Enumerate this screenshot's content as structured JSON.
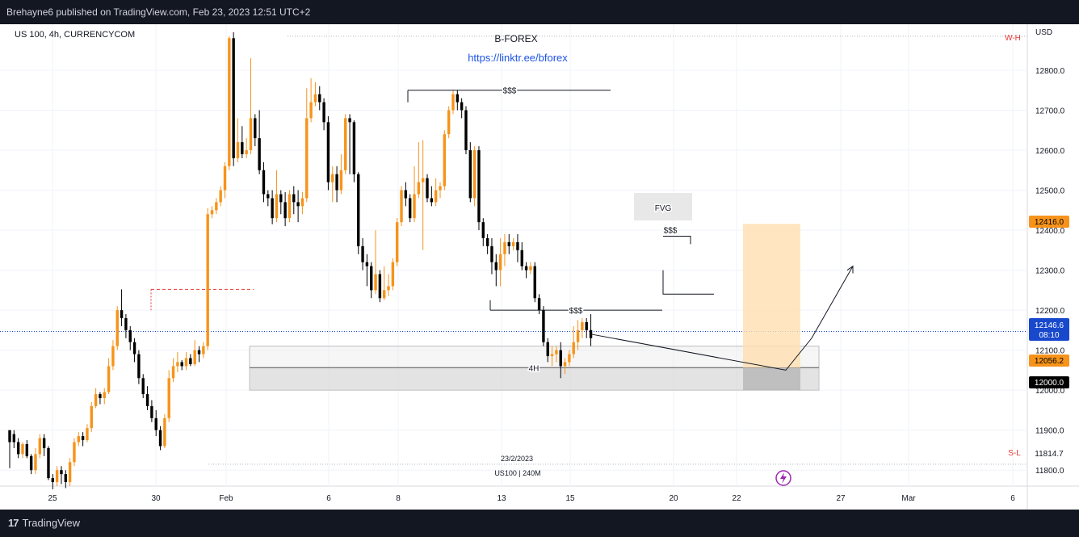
{
  "header": {
    "publisher_line": "Brehayne6 published on TradingView.com, Feb 23, 2023 12:51 UTC+2"
  },
  "footer": {
    "brand": "TradingView"
  },
  "colors": {
    "bull": "#f7931a",
    "bear": "#000000",
    "grid": "#f0f3fa",
    "accent_blue": "#1e53e5",
    "red": "#e53935"
  },
  "chart_data": {
    "type": "candlestick",
    "title": "US 100, 4h, CURRENCYCOM",
    "currency": "USD",
    "watermark_title": "B-FOREX",
    "watermark_link": "https://linktr.ee/bforex",
    "y_ticks": [
      "12800.0",
      "12700.0",
      "12600.0",
      "12500.0",
      "12400.0",
      "12300.0",
      "12200.0",
      "12100.0",
      "12000.0",
      "11900.0",
      "11800.0"
    ],
    "ylim": [
      11760,
      12915
    ],
    "x_ticks": [
      "25",
      "30",
      "Feb",
      "6",
      "8",
      "13",
      "15",
      "20",
      "22",
      "27",
      "Mar",
      "6"
    ],
    "price_labels": {
      "resistance": "12416.0",
      "last_price": "12146.6",
      "countdown": "08:10",
      "zone_mid": "12056.2",
      "level_12000": "12000.0",
      "low_line": "11814.7"
    },
    "line_labels": {
      "high": "W-H",
      "low": "S-L"
    },
    "annotations": {
      "sss_top": "$$$",
      "sss_bottom": "$$$",
      "sss_mid": "$$$",
      "fvg": "FVG",
      "zone_4h": "4H",
      "date_note": "23/2/2023",
      "symbol_note": "US100 | 240M"
    },
    "candles": [
      [
        11900,
        11870,
        11805,
        11890
      ],
      [
        11890,
        11870,
        11855,
        11900
      ],
      [
        11870,
        11840,
        11830,
        11880
      ],
      [
        11840,
        11865,
        11830,
        11870
      ],
      [
        11865,
        11835,
        11830,
        11875
      ],
      [
        11835,
        11800,
        11790,
        11840
      ],
      [
        11800,
        11840,
        11790,
        11855
      ],
      [
        11840,
        11880,
        11830,
        11890
      ],
      [
        11880,
        11855,
        11835,
        11890
      ],
      [
        11855,
        11780,
        11775,
        11860
      ],
      [
        11780,
        11770,
        11752,
        11790
      ],
      [
        11770,
        11800,
        11760,
        11810
      ],
      [
        11800,
        11790,
        11765,
        11810
      ],
      [
        11790,
        11770,
        11755,
        11800
      ],
      [
        11770,
        11820,
        11760,
        11830
      ],
      [
        11820,
        11870,
        11810,
        11880
      ],
      [
        11870,
        11885,
        11860,
        11895
      ],
      [
        11885,
        11875,
        11860,
        11895
      ],
      [
        11875,
        11905,
        11870,
        11915
      ],
      [
        11905,
        11960,
        11895,
        11970
      ],
      [
        11960,
        11990,
        11955,
        12005
      ],
      [
        11990,
        11980,
        11965,
        11995
      ],
      [
        11980,
        11995,
        11965,
        12005
      ],
      [
        11995,
        12060,
        11990,
        12080
      ],
      [
        12060,
        12110,
        12050,
        12125
      ],
      [
        12110,
        12200,
        12100,
        12210
      ],
      [
        12200,
        12180,
        12160,
        12252
      ],
      [
        12180,
        12150,
        12130,
        12190
      ],
      [
        12150,
        12120,
        12100,
        12160
      ],
      [
        12120,
        12090,
        12070,
        12130
      ],
      [
        12090,
        12030,
        12015,
        12100
      ],
      [
        12030,
        11990,
        11980,
        12040
      ],
      [
        11990,
        11960,
        11950,
        12010
      ],
      [
        11960,
        11930,
        11920,
        11975
      ],
      [
        11930,
        11900,
        11885,
        11950
      ],
      [
        11900,
        11860,
        11850,
        11910
      ],
      [
        11860,
        11930,
        11855,
        11940
      ],
      [
        11930,
        12030,
        11920,
        12050
      ],
      [
        12030,
        12060,
        12020,
        12080
      ],
      [
        12060,
        12070,
        12045,
        12095
      ],
      [
        12070,
        12060,
        12050,
        12075
      ],
      [
        12060,
        12080,
        12050,
        12095
      ],
      [
        12080,
        12065,
        12060,
        12090
      ],
      [
        12065,
        12100,
        12060,
        12125
      ],
      [
        12100,
        12090,
        12070,
        12110
      ],
      [
        12090,
        12110,
        12080,
        12120
      ],
      [
        12110,
        12440,
        12100,
        12455
      ],
      [
        12440,
        12450,
        12430,
        12460
      ],
      [
        12450,
        12470,
        12440,
        12480
      ],
      [
        12470,
        12500,
        12460,
        12510
      ],
      [
        12500,
        12560,
        12480,
        12570
      ],
      [
        12560,
        12880,
        12550,
        12885
      ],
      [
        12880,
        12580,
        12560,
        12895
      ],
      [
        12580,
        12620,
        12570,
        12680
      ],
      [
        12620,
        12590,
        12580,
        12660
      ],
      [
        12590,
        12600,
        12580,
        12630
      ],
      [
        12600,
        12680,
        12590,
        12830
      ],
      [
        12680,
        12630,
        12610,
        12690
      ],
      [
        12630,
        12550,
        12540,
        12700
      ],
      [
        12550,
        12490,
        12470,
        12570
      ],
      [
        12490,
        12480,
        12460,
        12500
      ],
      [
        12480,
        12430,
        12415,
        12500
      ],
      [
        12430,
        12490,
        12420,
        12550
      ],
      [
        12490,
        12470,
        12440,
        12500
      ],
      [
        12470,
        12430,
        12410,
        12495
      ],
      [
        12430,
        12490,
        12420,
        12500
      ],
      [
        12490,
        12470,
        12440,
        12510
      ],
      [
        12470,
        12460,
        12420,
        12500
      ],
      [
        12460,
        12480,
        12440,
        12495
      ],
      [
        12480,
        12680,
        12470,
        12755
      ],
      [
        12680,
        12720,
        12670,
        12780
      ],
      [
        12720,
        12740,
        12710,
        12770
      ],
      [
        12740,
        12720,
        12700,
        12760
      ],
      [
        12720,
        12670,
        12650,
        12730
      ],
      [
        12670,
        12520,
        12500,
        12685
      ],
      [
        12520,
        12540,
        12470,
        12560
      ],
      [
        12540,
        12500,
        12470,
        12560
      ],
      [
        12500,
        12550,
        12490,
        12590
      ],
      [
        12550,
        12680,
        12540,
        12690
      ],
      [
        12680,
        12670,
        12540,
        12690
      ],
      [
        12670,
        12540,
        12520,
        12675
      ],
      [
        12540,
        12360,
        12340,
        12545
      ],
      [
        12360,
        12320,
        12300,
        12380
      ],
      [
        12320,
        12310,
        12260,
        12340
      ],
      [
        12310,
        12250,
        12230,
        12320
      ],
      [
        12250,
        12290,
        12240,
        12400
      ],
      [
        12290,
        12230,
        12220,
        12300
      ],
      [
        12230,
        12250,
        12225,
        12310
      ],
      [
        12250,
        12260,
        12235,
        12290
      ],
      [
        12260,
        12320,
        12250,
        12330
      ],
      [
        12320,
        12420,
        12310,
        12430
      ],
      [
        12420,
        12500,
        12410,
        12510
      ],
      [
        12500,
        12480,
        12460,
        12520
      ],
      [
        12480,
        12430,
        12420,
        12490
      ],
      [
        12430,
        12490,
        12420,
        12560
      ],
      [
        12490,
        12520,
        12480,
        12620
      ],
      [
        12520,
        12530,
        12350,
        12625
      ],
      [
        12530,
        12480,
        12470,
        12540
      ],
      [
        12480,
        12470,
        12460,
        12510
      ],
      [
        12470,
        12500,
        12460,
        12530
      ],
      [
        12500,
        12510,
        12480,
        12520
      ],
      [
        12510,
        12640,
        12500,
        12650
      ],
      [
        12640,
        12700,
        12630,
        12710
      ],
      [
        12700,
        12740,
        12690,
        12750
      ],
      [
        12740,
        12720,
        12700,
        12750
      ],
      [
        12720,
        12700,
        12680,
        12730
      ],
      [
        12700,
        12600,
        12590,
        12710
      ],
      [
        12600,
        12480,
        12470,
        12620
      ],
      [
        12480,
        12600,
        12460,
        12610
      ],
      [
        12600,
        12420,
        12400,
        12610
      ],
      [
        12420,
        12380,
        12360,
        12430
      ],
      [
        12380,
        12360,
        12340,
        12390
      ],
      [
        12360,
        12320,
        12290,
        12380
      ],
      [
        12320,
        12300,
        12260,
        12340
      ],
      [
        12300,
        12340,
        12260,
        12380
      ],
      [
        12340,
        12370,
        12310,
        12390
      ],
      [
        12370,
        12360,
        12340,
        12390
      ],
      [
        12360,
        12370,
        12350,
        12380
      ],
      [
        12370,
        12350,
        12320,
        12390
      ],
      [
        12350,
        12310,
        12300,
        12370
      ],
      [
        12310,
        12300,
        12280,
        12320
      ],
      [
        12300,
        12310,
        12290,
        12320
      ],
      [
        12310,
        12230,
        12220,
        12320
      ],
      [
        12230,
        12200,
        12190,
        12240
      ],
      [
        12200,
        12120,
        12110,
        12210
      ],
      [
        12120,
        12085,
        12070,
        12130
      ],
      [
        12085,
        12090,
        12060,
        12110
      ],
      [
        12090,
        12100,
        12070,
        12110
      ],
      [
        12100,
        12060,
        12030,
        12120
      ],
      [
        12060,
        12070,
        12040,
        12080
      ],
      [
        12070,
        12090,
        12060,
        12100
      ],
      [
        12090,
        12120,
        12080,
        12160
      ],
      [
        12120,
        12150,
        12100,
        12175
      ],
      [
        12150,
        12170,
        12130,
        12180
      ],
      [
        12170,
        12150,
        12130,
        12180
      ],
      [
        12150,
        12130,
        12110,
        12190
      ]
    ]
  }
}
